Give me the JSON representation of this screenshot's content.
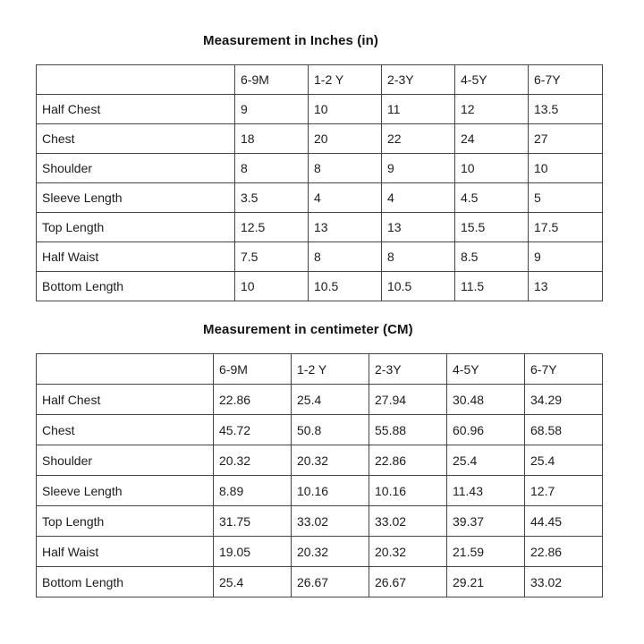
{
  "page": {
    "background_color": "#ffffff",
    "text_color": "#1c1c1c",
    "border_color": "#454545"
  },
  "tables": [
    {
      "title": "Measurement in Inches (in)",
      "unit": "in",
      "columns": [
        "",
        "6-9M",
        "1-2 Y",
        "2-3Y",
        "4-5Y",
        "6-7Y"
      ],
      "rows": [
        {
          "label": "Half Chest",
          "values": [
            "9",
            "10",
            "11",
            "12",
            "13.5"
          ]
        },
        {
          "label": "Chest",
          "values": [
            "18",
            "20",
            "22",
            "24",
            "27"
          ]
        },
        {
          "label": "Shoulder",
          "values": [
            "8",
            "8",
            "9",
            "10",
            "10"
          ]
        },
        {
          "label": "Sleeve Length",
          "values": [
            "3.5",
            "4",
            "4",
            "4.5",
            "5"
          ]
        },
        {
          "label": "Top Length",
          "values": [
            "12.5",
            "13",
            "13",
            "15.5",
            "17.5"
          ]
        },
        {
          "label": "Half Waist",
          "values": [
            "7.5",
            "8",
            "8",
            "8.5",
            "9"
          ]
        },
        {
          "label": "Bottom Length",
          "values": [
            "10",
            "10.5",
            "10.5",
            "11.5",
            "13"
          ]
        }
      ]
    },
    {
      "title": "Measurement in centimeter (CM)",
      "unit": "cm",
      "columns": [
        "",
        "6-9M",
        "1-2 Y",
        "2-3Y",
        "4-5Y",
        "6-7Y"
      ],
      "rows": [
        {
          "label": "Half Chest",
          "values": [
            "22.86",
            "25.4",
            "27.94",
            "30.48",
            "34.29"
          ]
        },
        {
          "label": "Chest",
          "values": [
            "45.72",
            "50.8",
            "55.88",
            "60.96",
            "68.58"
          ]
        },
        {
          "label": "Shoulder",
          "values": [
            "20.32",
            "20.32",
            "22.86",
            "25.4",
            "25.4"
          ]
        },
        {
          "label": "Sleeve Length",
          "values": [
            "8.89",
            "10.16",
            "10.16",
            "11.43",
            "12.7"
          ]
        },
        {
          "label": "Top Length",
          "values": [
            "31.75",
            "33.02",
            "33.02",
            "39.37",
            "44.45"
          ]
        },
        {
          "label": "Half Waist",
          "values": [
            "19.05",
            "20.32",
            "20.32",
            "21.59",
            "22.86"
          ]
        },
        {
          "label": "Bottom Length",
          "values": [
            "25.4",
            "26.67",
            "26.67",
            "29.21",
            "33.02"
          ]
        }
      ]
    }
  ]
}
